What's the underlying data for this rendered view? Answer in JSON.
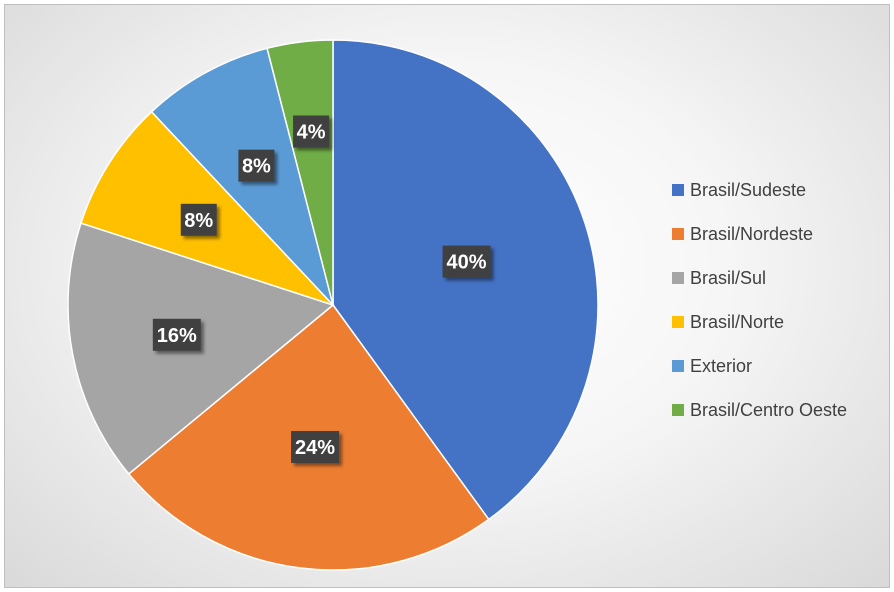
{
  "chart_data": {
    "type": "pie",
    "categories": [
      "Brasil/Sudeste",
      "Brasil/Nordeste",
      "Brasil/Sul",
      "Brasil/Norte",
      "Exterior",
      "Brasil/Centro Oeste"
    ],
    "values": [
      40,
      24,
      16,
      8,
      8,
      4
    ],
    "data_labels": [
      "40%",
      "24%",
      "16%",
      "8%",
      "8%",
      "4%"
    ],
    "colors": [
      "#4472c4",
      "#ed7d31",
      "#a5a5a5",
      "#ffc000",
      "#5b9bd5",
      "#70ad47"
    ],
    "label_box_color": "#404040",
    "legend_placement": "right",
    "start_angle": "12 o'clock, clockwise"
  }
}
